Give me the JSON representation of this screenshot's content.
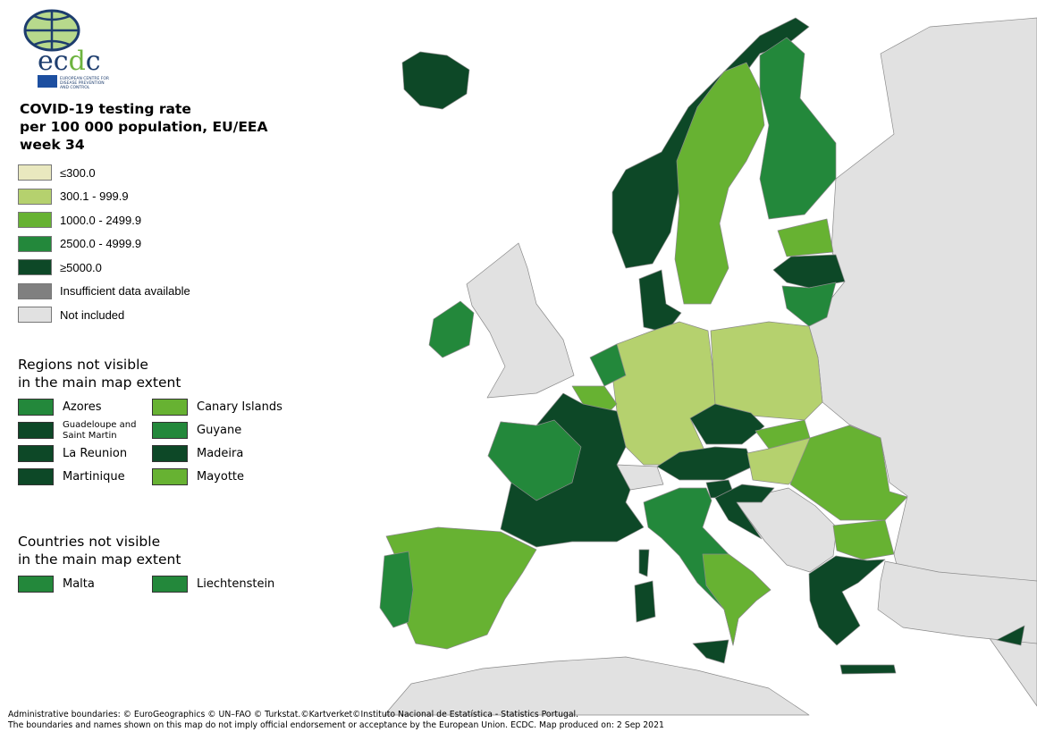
{
  "logo": {
    "text": "ecdc",
    "subtitle": "EUROPEAN CENTRE FOR DISEASE PREVENTION AND CONTROL"
  },
  "title": {
    "line1": "COVID-19 testing rate",
    "line2": "per 100 000 population, EU/EEA",
    "line3": "week 34"
  },
  "colors": {
    "c0": "#e9e8bf",
    "c1": "#b5d16e",
    "c2": "#67b232",
    "c3": "#23883b",
    "c4": "#0d4827",
    "insufficient": "#808080",
    "not_included": "#e1e1e1"
  },
  "legend": [
    {
      "label": "≤300.0",
      "color": "#e9e8bf"
    },
    {
      "label": "300.1 - 999.9",
      "color": "#b5d16e"
    },
    {
      "label": "1000.0 - 2499.9",
      "color": "#67b232"
    },
    {
      "label": "2500.0 - 4999.9",
      "color": "#23883b"
    },
    {
      "label": "≥5000.0",
      "color": "#0d4827"
    },
    {
      "label": "Insufficient data available",
      "color": "#808080"
    },
    {
      "label": "Not included",
      "color": "#e1e1e1"
    }
  ],
  "regions_heading": {
    "line1": "Regions not visible",
    "line2": "in the main map extent"
  },
  "regions": [
    {
      "label": "Azores",
      "color": "#23883b"
    },
    {
      "label": "Canary Islands",
      "color": "#67b232"
    },
    {
      "label": "Guadeloupe and Saint Martin",
      "color": "#0d4827"
    },
    {
      "label": "Guyane",
      "color": "#23883b"
    },
    {
      "label": "La Reunion",
      "color": "#0d4827"
    },
    {
      "label": "Madeira",
      "color": "#0d4827"
    },
    {
      "label": "Martinique",
      "color": "#0d4827"
    },
    {
      "label": "Mayotte",
      "color": "#67b232"
    }
  ],
  "countries_heading": {
    "line1": "Countries not visible",
    "line2": "in the main map extent"
  },
  "countries": [
    {
      "label": "Malta",
      "color": "#23883b"
    },
    {
      "label": "Liechtenstein",
      "color": "#23883b"
    }
  ],
  "map_fill": {
    "iceland": "c4",
    "norway": "c4",
    "sweden": "c2",
    "finland": "c3",
    "estonia": "c2",
    "latvia": "c4",
    "lithuania": "c3",
    "denmark": "c4",
    "germany": "c1",
    "netherlands": "c3",
    "belgium": "c2",
    "poland": "c1",
    "czechia": "c4",
    "slovakia": "c2",
    "austria": "c4",
    "hungary": "c1",
    "slovenia": "c4",
    "croatia": "c4",
    "romania": "c2",
    "bulgaria": "c2",
    "greece": "c4",
    "crete": "c4",
    "cyprus": "c4",
    "france": "c4",
    "france-west": "c3",
    "corsica": "c4",
    "spain": "c2",
    "portugal": "c3",
    "italy": "c3",
    "italy-south": "c2",
    "sardinia": "c4",
    "sicily": "c4",
    "ireland": "c3",
    "uk": "not_included",
    "switzerland": "not_included",
    "balkans": "not_included",
    "east": "not_included",
    "turkey": "not_included",
    "africa": "not_included",
    "greenland-edge": "not_included"
  },
  "footer": {
    "line1": "Administrative boundaries: © EuroGeographics © UN–FAO © Turkstat.©Kartverket©Instituto Nacional de Estatística - Statistics Portugal.",
    "line2": "The boundaries and names shown on this map do not imply official endorsement or acceptance by the European Union. ECDC. Map produced on: 2 Sep 2021"
  }
}
